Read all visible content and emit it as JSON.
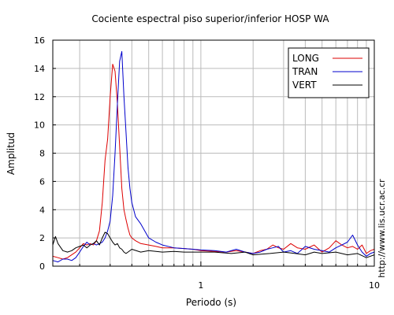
{
  "chart_data": {
    "type": "line",
    "title": "Cociente espectral piso superior/inferior  HOSP WA",
    "xlabel": "Periodo (s)",
    "ylabel": "Amplitud",
    "xscale": "log",
    "xlim": [
      0.14,
      10
    ],
    "ylim": [
      0,
      16
    ],
    "x_ticks": [
      {
        "value": 1,
        "label": "1"
      },
      {
        "value": 10,
        "label": "10"
      }
    ],
    "y_ticks": [
      0,
      2,
      4,
      6,
      8,
      10,
      12,
      14,
      16
    ],
    "grid": true,
    "legend_position": "top-right",
    "watermark": "http://www.lis.ucr.ac.cr",
    "series": [
      {
        "name": "LONG",
        "color": "#dd0000",
        "x": [
          0.14,
          0.15,
          0.16,
          0.17,
          0.18,
          0.19,
          0.2,
          0.21,
          0.22,
          0.23,
          0.24,
          0.25,
          0.26,
          0.27,
          0.28,
          0.29,
          0.3,
          0.31,
          0.32,
          0.33,
          0.34,
          0.35,
          0.36,
          0.37,
          0.38,
          0.39,
          0.4,
          0.42,
          0.45,
          0.5,
          0.55,
          0.6,
          0.7,
          0.8,
          0.9,
          1.0,
          1.2,
          1.4,
          1.6,
          1.8,
          2.0,
          2.2,
          2.4,
          2.6,
          2.8,
          3.0,
          3.3,
          3.6,
          4.0,
          4.5,
          5.0,
          5.5,
          6.0,
          6.5,
          7.0,
          7.5,
          8.0,
          8.5,
          9.0,
          9.5,
          10.0
        ],
        "y": [
          0.7,
          0.6,
          0.5,
          0.6,
          0.8,
          1.0,
          1.3,
          1.6,
          1.5,
          1.6,
          1.5,
          1.8,
          2.5,
          4.5,
          7.5,
          9.0,
          12.0,
          14.3,
          13.8,
          11.5,
          8.5,
          5.5,
          4.0,
          3.3,
          2.7,
          2.2,
          2.0,
          1.8,
          1.6,
          1.5,
          1.4,
          1.3,
          1.3,
          1.25,
          1.2,
          1.1,
          1.05,
          1.0,
          1.1,
          1.0,
          0.9,
          1.1,
          1.2,
          1.5,
          1.3,
          1.2,
          1.6,
          1.3,
          1.2,
          1.5,
          1.0,
          1.3,
          1.8,
          1.5,
          1.3,
          1.4,
          1.2,
          1.5,
          0.9,
          1.1,
          1.2
        ]
      },
      {
        "name": "TRAN",
        "color": "#0000cc",
        "x": [
          0.14,
          0.15,
          0.16,
          0.17,
          0.18,
          0.19,
          0.2,
          0.21,
          0.22,
          0.23,
          0.24,
          0.25,
          0.26,
          0.27,
          0.28,
          0.29,
          0.3,
          0.31,
          0.32,
          0.33,
          0.34,
          0.35,
          0.36,
          0.37,
          0.38,
          0.39,
          0.4,
          0.42,
          0.45,
          0.5,
          0.55,
          0.6,
          0.7,
          0.8,
          0.9,
          1.0,
          1.2,
          1.4,
          1.6,
          1.8,
          2.0,
          2.2,
          2.4,
          2.6,
          2.8,
          3.0,
          3.3,
          3.6,
          4.0,
          4.5,
          5.0,
          5.5,
          6.0,
          6.5,
          7.0,
          7.5,
          8.0,
          8.5,
          9.0,
          9.5,
          10.0
        ],
        "y": [
          0.4,
          0.3,
          0.5,
          0.5,
          0.4,
          0.6,
          1.0,
          1.4,
          1.7,
          1.5,
          1.6,
          1.5,
          1.6,
          1.7,
          2.0,
          2.5,
          3.2,
          5.0,
          8.0,
          11.5,
          14.5,
          15.2,
          12.0,
          9.5,
          7.0,
          5.5,
          4.5,
          3.5,
          3.0,
          2.0,
          1.7,
          1.5,
          1.3,
          1.25,
          1.2,
          1.15,
          1.1,
          1.0,
          1.2,
          1.0,
          0.9,
          1.0,
          1.2,
          1.3,
          1.4,
          1.0,
          1.1,
          0.9,
          1.4,
          1.2,
          1.1,
          1.0,
          1.3,
          1.5,
          1.7,
          2.2,
          1.5,
          1.0,
          0.7,
          0.9,
          1.0
        ]
      },
      {
        "name": "VERT",
        "color": "#000000",
        "x": [
          0.14,
          0.145,
          0.15,
          0.16,
          0.17,
          0.18,
          0.19,
          0.2,
          0.21,
          0.22,
          0.23,
          0.24,
          0.25,
          0.26,
          0.27,
          0.28,
          0.29,
          0.3,
          0.31,
          0.32,
          0.33,
          0.34,
          0.35,
          0.36,
          0.37,
          0.38,
          0.4,
          0.45,
          0.5,
          0.6,
          0.7,
          0.8,
          1.0,
          1.2,
          1.5,
          1.8,
          2.0,
          2.5,
          3.0,
          3.5,
          4.0,
          4.5,
          5.0,
          6.0,
          7.0,
          8.0,
          9.0,
          10.0
        ],
        "y": [
          1.5,
          2.1,
          1.6,
          1.1,
          1.0,
          1.1,
          1.3,
          1.4,
          1.5,
          1.3,
          1.5,
          1.6,
          1.8,
          1.5,
          2.0,
          2.4,
          2.3,
          2.0,
          1.7,
          1.5,
          1.6,
          1.3,
          1.2,
          1.0,
          0.9,
          1.0,
          1.2,
          1.0,
          1.1,
          1.0,
          1.05,
          1.0,
          1.0,
          1.0,
          0.9,
          1.0,
          0.8,
          0.9,
          1.0,
          0.9,
          0.8,
          1.0,
          0.9,
          1.0,
          0.8,
          0.9,
          0.6,
          0.8
        ]
      }
    ]
  }
}
